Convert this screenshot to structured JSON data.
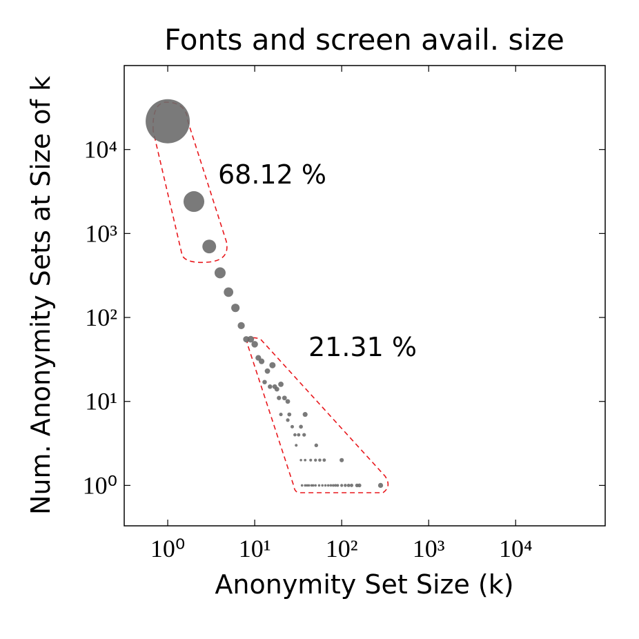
{
  "chart_data": {
    "type": "scatter",
    "title": "Fonts and screen avail. size",
    "x_label": "Anonymity Set Size (k)",
    "y_label": "Num. Anonymity Sets at Size of k",
    "log_x": true,
    "log_y": true,
    "color": "#6b6b6b",
    "xlim": [
      0.316,
      107000
    ],
    "ylim": [
      0.33,
      100000
    ],
    "xticks": [
      {
        "value": 1,
        "label": "10⁰"
      },
      {
        "value": 10,
        "label": "10¹"
      },
      {
        "value": 100,
        "label": "10²"
      },
      {
        "value": 1000,
        "label": "10³"
      },
      {
        "value": 10000,
        "label": "10⁴"
      }
    ],
    "yticks": [
      {
        "value": 1,
        "label": "10⁰"
      },
      {
        "value": 10,
        "label": "10¹"
      },
      {
        "value": 100,
        "label": "10²"
      },
      {
        "value": 1000,
        "label": "10³"
      },
      {
        "value": 10000,
        "label": "10⁴"
      }
    ],
    "annotations": [
      "68.12 %",
      "21.31 %"
    ],
    "x": [
      1,
      2,
      3,
      4,
      5,
      6,
      7,
      8,
      9,
      10,
      11,
      12,
      13,
      14,
      15,
      16,
      17,
      18,
      19,
      20,
      22,
      24,
      20,
      25,
      38,
      24,
      27,
      34,
      29,
      32,
      37,
      30,
      51,
      34,
      38,
      44,
      50,
      56,
      63,
      100,
      35,
      38,
      40,
      42,
      45,
      47,
      50,
      55,
      60,
      65,
      70,
      75,
      80,
      85,
      90,
      100,
      110,
      120,
      130,
      150,
      160,
      280
    ],
    "values": [
      21700,
      2400,
      700,
      340,
      200,
      130,
      80,
      55,
      55,
      48,
      33,
      30,
      17,
      23,
      15,
      27,
      15,
      14,
      11,
      16,
      11,
      10,
      7,
      7,
      7,
      6,
      5,
      5,
      4,
      4,
      4,
      3,
      3,
      2,
      2,
      2,
      2,
      2,
      2,
      2,
      1,
      1,
      1,
      1,
      1,
      1,
      1,
      1,
      1,
      1,
      1,
      1,
      1,
      1,
      1,
      1,
      1,
      1,
      1,
      1,
      1,
      1
    ]
  }
}
